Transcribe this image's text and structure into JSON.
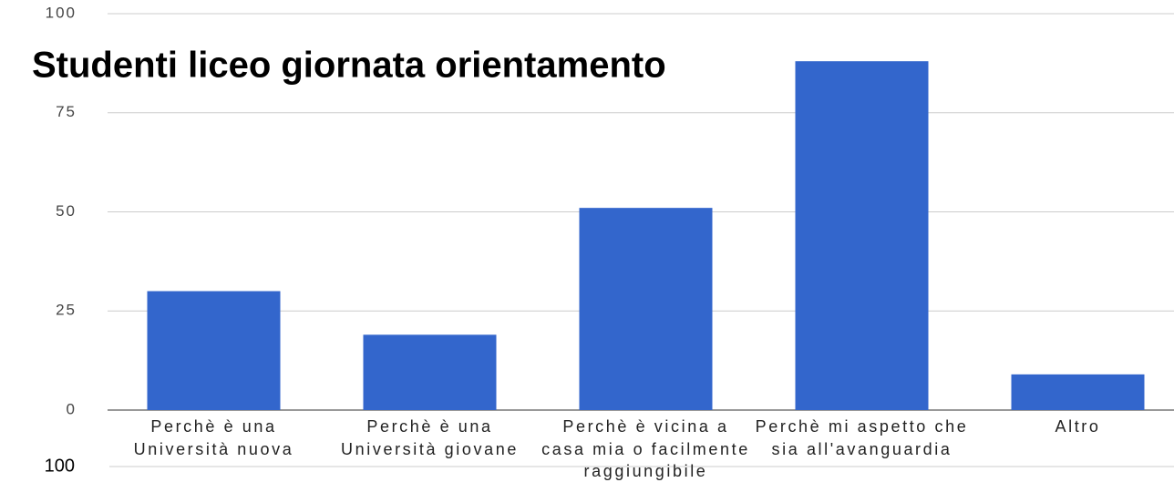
{
  "chart_data": {
    "type": "bar",
    "title": "Studenti liceo giornata orientamento",
    "categories": [
      "Perchè è una Università nuova",
      "Perchè è una Università giovane",
      "Perchè è vicina a casa mia o facilmente raggiungibile",
      "Perchè mi aspetto che sia all'avanguardia",
      "Altro"
    ],
    "values": [
      30,
      19,
      51,
      88,
      9
    ],
    "color": "#3366cc",
    "ylim": [
      0,
      100
    ],
    "yticks": [
      0,
      25,
      50,
      75,
      100
    ],
    "grid": true,
    "annotations": [
      "100"
    ]
  }
}
